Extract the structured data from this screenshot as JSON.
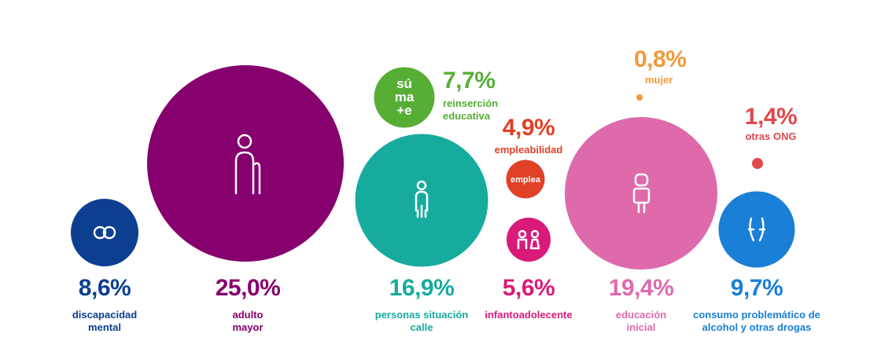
{
  "chart_data": {
    "type": "bubble",
    "categories": [
      "discapacidad mental",
      "adulto mayor",
      "personas situación calle",
      "infantoadolecente",
      "educación inicial",
      "consumo problemático de alcohol y otras drogas",
      "reinserción educativa",
      "empleabilidad",
      "mujer",
      "otras ONG"
    ],
    "values": [
      8.6,
      25.0,
      16.9,
      5.6,
      19.4,
      9.7,
      7.7,
      4.9,
      0.8,
      1.4
    ],
    "value_labels": [
      "8,6%",
      "25,0%",
      "16,9%",
      "5,6%",
      "19,4%",
      "9,7%",
      "7,7%",
      "4,9%",
      "0,8%",
      "1,4%"
    ],
    "colors": [
      "#0d3f91",
      "#86006e",
      "#17ab9e",
      "#d91a78",
      "#de6aac",
      "#1a7fd6",
      "#57ae35",
      "#e04127",
      "#ef9a3a",
      "#e0484c"
    ],
    "annotations": [
      "sú",
      "ma",
      "+e",
      "emplea"
    ]
  }
}
